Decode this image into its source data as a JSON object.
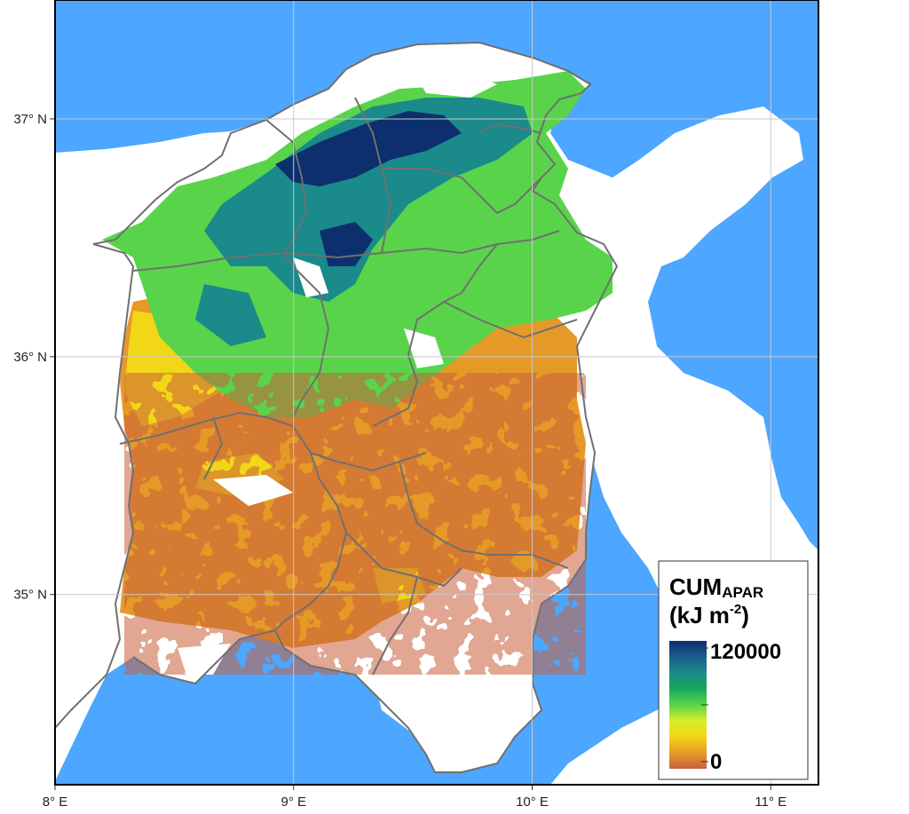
{
  "map": {
    "colors": {
      "sea": "#4da6ff",
      "land": "#ffffff",
      "border": "#707070",
      "frame": "#000000",
      "grid": "#c8c8c8"
    },
    "x_ticks": [
      {
        "value": 8,
        "label": "8° E"
      },
      {
        "value": 9,
        "label": "9° E"
      },
      {
        "value": 10,
        "label": "10° E"
      },
      {
        "value": 11,
        "label": "11° E"
      }
    ],
    "y_ticks": [
      {
        "value": 35,
        "label": "35° N"
      },
      {
        "value": 36,
        "label": "36° N"
      },
      {
        "value": 37,
        "label": "37° N"
      }
    ],
    "x_range": [
      8,
      11.2
    ],
    "y_range": [
      34.2,
      37.5
    ]
  },
  "legend": {
    "title_main": "CUM",
    "title_sub": "APAR",
    "unit_open": "(kJ m",
    "unit_exp": "-2",
    "unit_close": ")",
    "max_label": "120000",
    "min_label": "0",
    "range": [
      0,
      120000
    ],
    "colors": [
      "#c9603a",
      "#e59a28",
      "#f2d618",
      "#d8ee2a",
      "#59d44a",
      "#17a85c",
      "#1a8a8a",
      "#1c5c8c",
      "#0d2f6e"
    ]
  }
}
